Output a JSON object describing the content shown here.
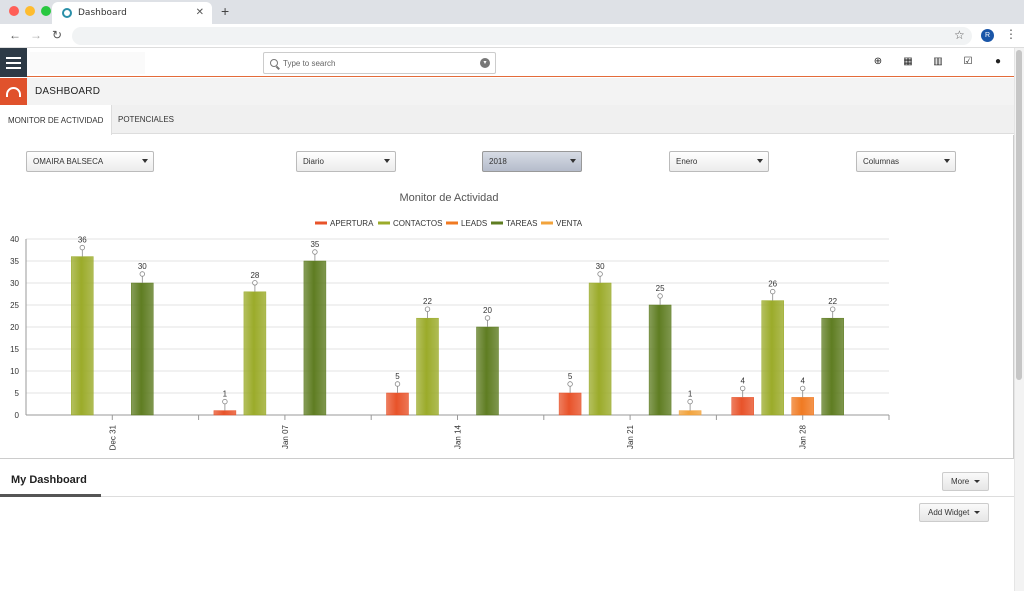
{
  "browser": {
    "tab_title": "Dashboard",
    "profile_initial": "R"
  },
  "header": {
    "search_placeholder": "Type to search"
  },
  "module": {
    "title": "DASHBOARD"
  },
  "tabs": [
    {
      "label": "MONITOR DE ACTIVIDAD"
    },
    {
      "label": "POTENCIALES"
    }
  ],
  "filters": {
    "user": "OMAIRA BALSECA",
    "period": "Diario",
    "year": "2018",
    "month": "Enero",
    "chart_type": "Columnas"
  },
  "chart_data": {
    "type": "bar",
    "title": "Monitor de Actividad",
    "categories": [
      "Dec 31",
      "Jan 07",
      "Jan 14",
      "Jan 21",
      "Jan 28"
    ],
    "ylim": [
      0,
      40
    ],
    "yticks": [
      0,
      5,
      10,
      15,
      20,
      25,
      30,
      35,
      40
    ],
    "legend_position": "top-center",
    "grid": true,
    "series": [
      {
        "name": "APERTURA",
        "color": "#e8532a",
        "values": [
          null,
          1,
          5,
          5,
          4
        ]
      },
      {
        "name": "CONTACTOS",
        "color": "#9bab2a",
        "values": [
          36,
          28,
          22,
          30,
          26
        ]
      },
      {
        "name": "LEADS",
        "color": "#f07a22",
        "values": [
          null,
          null,
          null,
          null,
          4
        ]
      },
      {
        "name": "TAREAS",
        "color": "#5f7d22",
        "values": [
          30,
          35,
          20,
          25,
          22
        ]
      },
      {
        "name": "VENTA",
        "color": "#f2a33c",
        "values": [
          null,
          null,
          null,
          1,
          null
        ]
      }
    ]
  },
  "my_dashboard": {
    "title": "My Dashboard",
    "more_label": "More",
    "add_widget_label": "Add Widget"
  }
}
